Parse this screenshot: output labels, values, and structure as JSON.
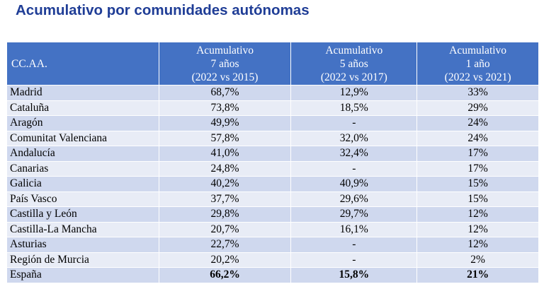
{
  "title": "Acumulativo por comunidades autónomas",
  "header": {
    "col1": "CC.AA.",
    "col2": [
      "Acumulativo",
      "7 años",
      "(2022 vs 2015)"
    ],
    "col3": [
      "Acumulativo",
      "5 años",
      "(2022 vs 2017)"
    ],
    "col4": [
      "Acumulativo",
      "1 año",
      "(2022 vs 2021)"
    ]
  },
  "rows": [
    [
      "Madrid",
      "68,7%",
      "12,9%",
      "33%"
    ],
    [
      "Cataluña",
      "73,8%",
      "18,5%",
      "29%"
    ],
    [
      "Aragón",
      "49,9%",
      "-",
      "24%"
    ],
    [
      "Comunitat Valenciana",
      "57,8%",
      "32,0%",
      "24%"
    ],
    [
      "Andalucía",
      "41,0%",
      "32,4%",
      "17%"
    ],
    [
      "Canarias",
      "24,8%",
      "-",
      "17%"
    ],
    [
      "Galicia",
      "40,2%",
      "40,9%",
      "15%"
    ],
    [
      "País Vasco",
      "37,7%",
      "29,6%",
      "15%"
    ],
    [
      "Castilla y León",
      "29,8%",
      "29,7%",
      "12%"
    ],
    [
      "Castilla-La Mancha",
      "20,7%",
      "16,1%",
      "12%"
    ],
    [
      "Asturias",
      "22,7%",
      "-",
      "12%"
    ],
    [
      "Región de Murcia",
      "20,2%",
      "-",
      "2%"
    ],
    [
      "España",
      "66,2%",
      "15,8%",
      "21%"
    ]
  ],
  "colors": {
    "title": "#1f3d96",
    "header_bg": "#4472c4",
    "row_dark": "#cfd8ee",
    "row_light": "#e8ecf6"
  }
}
